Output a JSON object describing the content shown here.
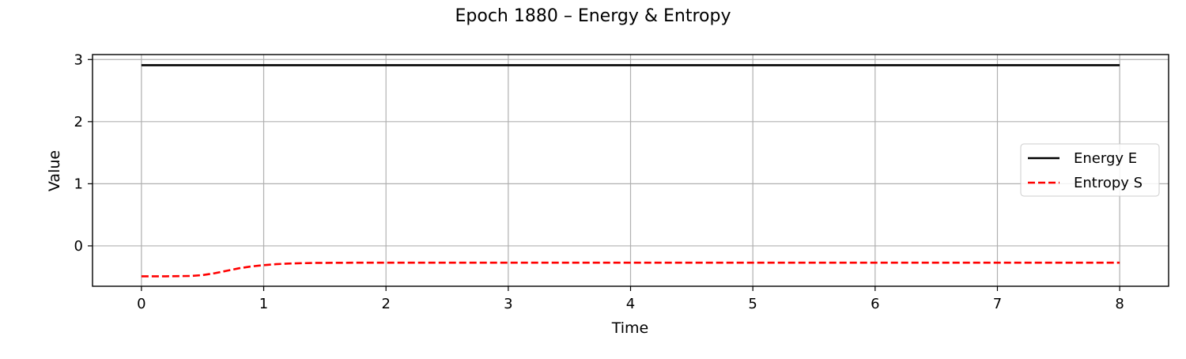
{
  "chart_data": {
    "type": "line",
    "title": "Epoch 1880 – Energy & Entropy",
    "xlabel": "Time",
    "ylabel": "Value",
    "xlim": [
      -0.4,
      8.4
    ],
    "ylim": [
      -0.65,
      3.08
    ],
    "x_ticks": [
      0,
      1,
      2,
      3,
      4,
      5,
      6,
      7,
      8
    ],
    "y_ticks": [
      0,
      1,
      2,
      3
    ],
    "grid": true,
    "legend_position": "center-right",
    "series": [
      {
        "name": "Energy E",
        "color": "#000000",
        "style": "solid",
        "x": [
          0,
          8
        ],
        "y": [
          2.91,
          2.91
        ]
      },
      {
        "name": "Entropy S",
        "color": "#ff0000",
        "style": "dashed",
        "x": [
          0,
          0.2,
          0.4,
          0.5,
          0.6,
          0.7,
          0.8,
          0.9,
          1.0,
          1.1,
          1.2,
          1.4,
          1.6,
          1.8,
          2.0,
          3,
          4,
          5,
          6,
          7,
          8
        ],
        "y": [
          -0.49,
          -0.49,
          -0.485,
          -0.47,
          -0.44,
          -0.4,
          -0.36,
          -0.33,
          -0.31,
          -0.295,
          -0.285,
          -0.275,
          -0.272,
          -0.27,
          -0.27,
          -0.27,
          -0.27,
          -0.27,
          -0.27,
          -0.27,
          -0.27
        ]
      }
    ]
  }
}
